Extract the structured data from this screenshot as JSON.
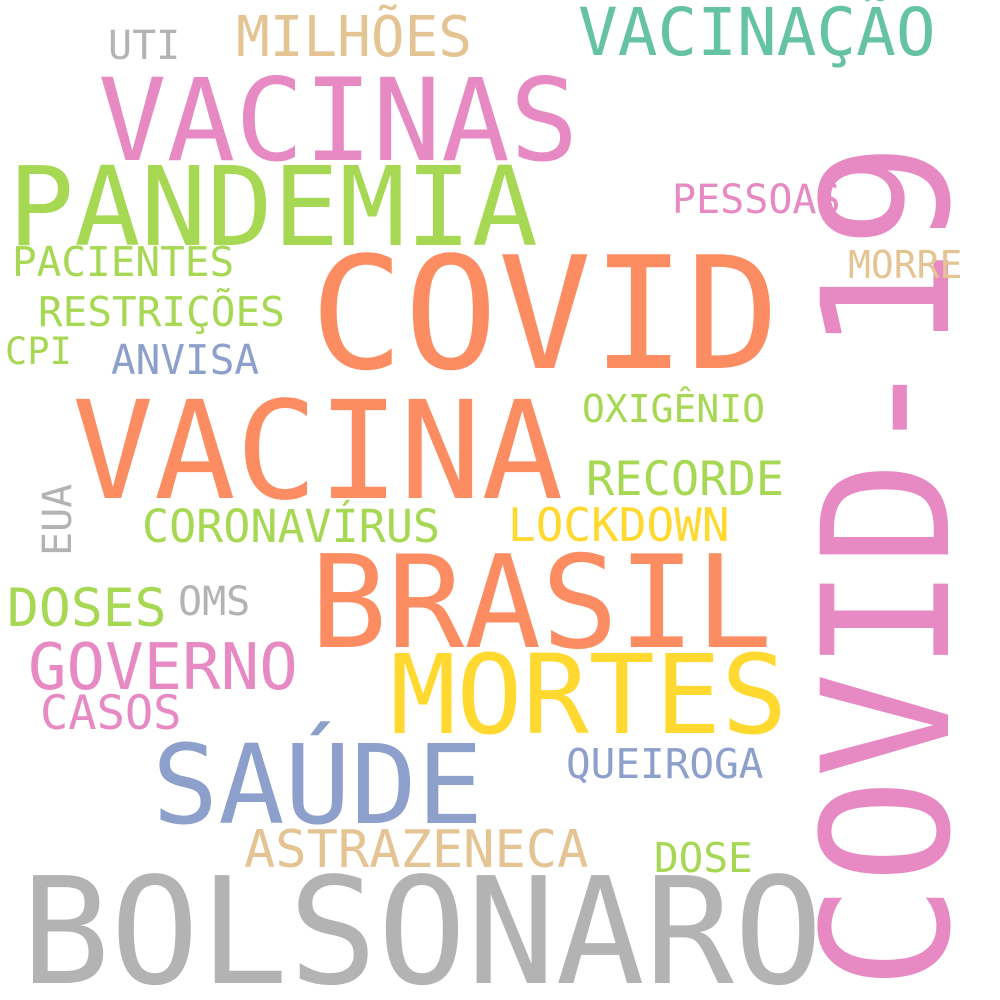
{
  "palette": {
    "orange": "#fc8d62",
    "pink": "#e78ac3",
    "green": "#a6d854",
    "yellow": "#ffd92f",
    "blue": "#8da0cb",
    "tan": "#e5c494",
    "gray": "#b3b3b3",
    "teal": "#66c2a5"
  },
  "words": {
    "covid19": "COVID-19",
    "bolsonaro": "BOLSONARO",
    "covid": "COVID",
    "vacina": "VACINA",
    "brasil": "BRASIL",
    "vacinas": "VACINAS",
    "pandemia": "PANDEMIA",
    "mortes": "MORTES",
    "saude": "SAÚDE",
    "vacinacao": "VACINAÇÃO",
    "milhoes": "MILHÕES",
    "uti": "UTI",
    "pessoas": "PESSOAS",
    "morre": "MORRE",
    "pacientes": "PACIENTES",
    "restricoes": "RESTRIÇÕES",
    "cpi": "CPI",
    "anvisa": "ANVISA",
    "oxigenio": "OXIGÊNIO",
    "recorde": "RECORDE",
    "eua": "EUA",
    "coronavirus": "CORONAVÍRUS",
    "lockdown": "LOCKDOWN",
    "doses": "DOSES",
    "oms": "OMS",
    "governo": "GOVERNO",
    "casos": "CASOS",
    "queiroga": "QUEIROGA",
    "astrazeneca": "ASTRAZENECA",
    "dose": "DOSE"
  }
}
